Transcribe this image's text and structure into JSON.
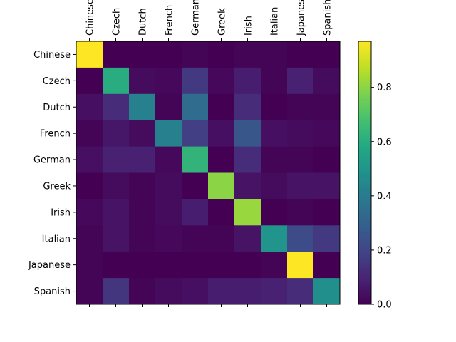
{
  "chart_data": {
    "type": "heatmap",
    "x_categories": [
      "Chinese",
      "Czech",
      "Dutch",
      "French",
      "German",
      "Greek",
      "Irish",
      "Italian",
      "Japanese",
      "Spanish"
    ],
    "y_categories": [
      "Chinese",
      "Czech",
      "Dutch",
      "French",
      "German",
      "Greek",
      "Irish",
      "Italian",
      "Japanese",
      "Spanish"
    ],
    "values": [
      [
        0.97,
        0.0,
        0.0,
        0.0,
        0.01,
        0.0,
        0.01,
        0.01,
        0.0,
        0.0
      ],
      [
        0.0,
        0.6,
        0.03,
        0.02,
        0.16,
        0.02,
        0.08,
        0.01,
        0.09,
        0.03
      ],
      [
        0.04,
        0.12,
        0.42,
        0.01,
        0.34,
        0.0,
        0.12,
        0.0,
        0.01,
        0.01
      ],
      [
        0.01,
        0.06,
        0.03,
        0.42,
        0.18,
        0.04,
        0.26,
        0.04,
        0.03,
        0.02
      ],
      [
        0.04,
        0.09,
        0.09,
        0.02,
        0.63,
        0.0,
        0.12,
        0.01,
        0.01,
        0.0
      ],
      [
        0.0,
        0.03,
        0.01,
        0.03,
        0.0,
        0.8,
        0.05,
        0.03,
        0.05,
        0.05
      ],
      [
        0.02,
        0.05,
        0.01,
        0.03,
        0.08,
        0.0,
        0.82,
        0.0,
        0.01,
        0.0
      ],
      [
        0.01,
        0.05,
        0.01,
        0.02,
        0.01,
        0.01,
        0.05,
        0.5,
        0.22,
        0.16
      ],
      [
        0.01,
        0.0,
        0.0,
        0.0,
        0.0,
        0.0,
        0.0,
        0.01,
        0.97,
        0.0
      ],
      [
        0.01,
        0.15,
        0.01,
        0.03,
        0.04,
        0.08,
        0.08,
        0.09,
        0.12,
        0.48
      ]
    ],
    "colormap": "viridis",
    "colorbar": {
      "min": 0.0,
      "max": 0.97,
      "ticks": [
        0.0,
        0.2,
        0.4,
        0.6,
        0.8
      ],
      "tick_labels": [
        "0.0",
        "0.2",
        "0.4",
        "0.6",
        "0.8"
      ]
    },
    "x_tick_rotation": 90,
    "x_tick_position": "top",
    "grid": false
  }
}
